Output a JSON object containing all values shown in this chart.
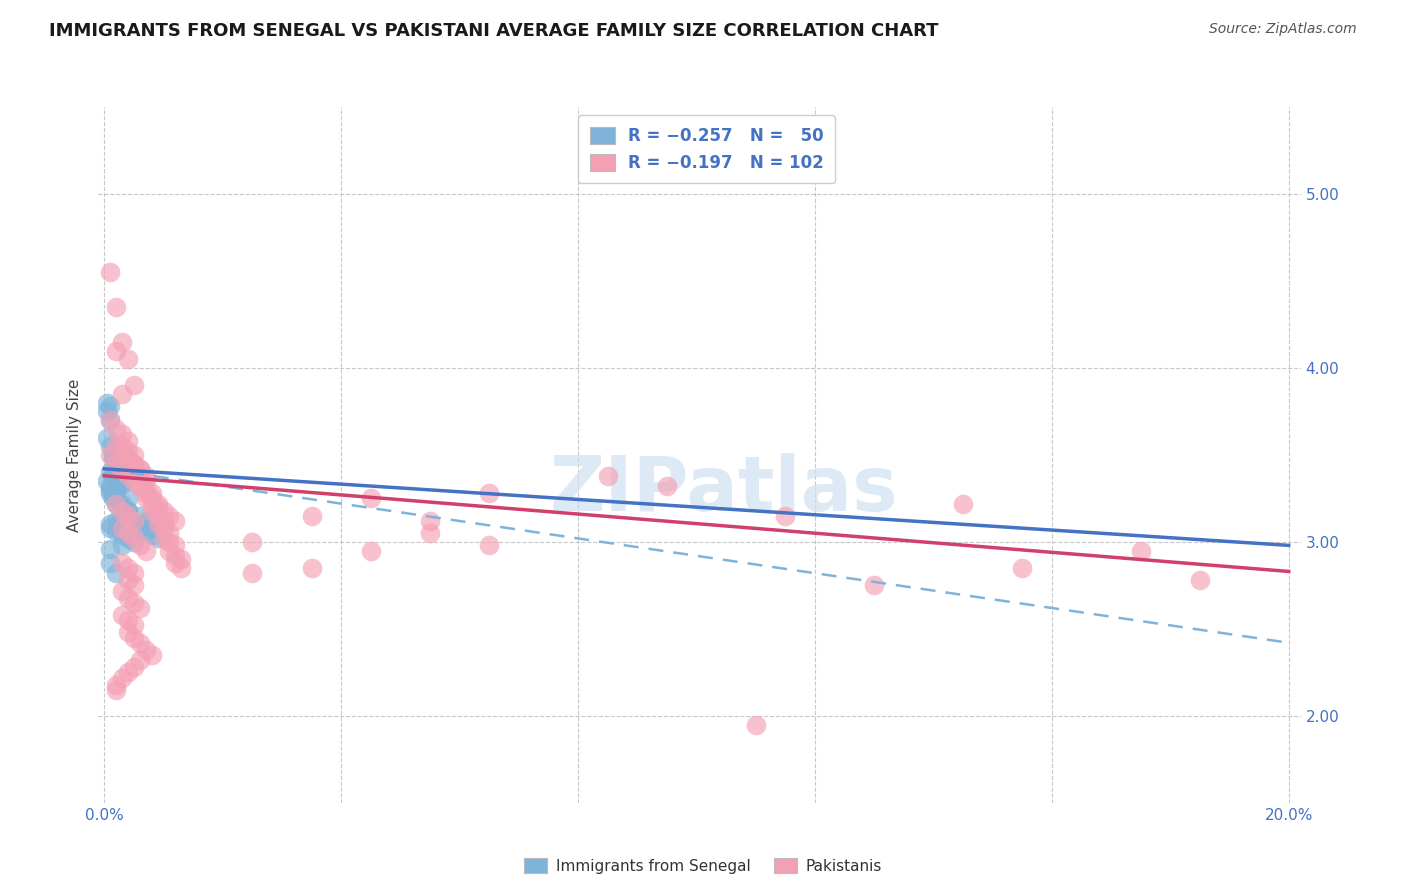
{
  "title": "IMMIGRANTS FROM SENEGAL VS PAKISTANI AVERAGE FAMILY SIZE CORRELATION CHART",
  "source": "Source: ZipAtlas.com",
  "ylabel": "Average Family Size",
  "watermark": "ZIPatlas",
  "ylim": [
    1.5,
    5.5
  ],
  "xlim": [
    -0.001,
    0.202
  ],
  "senegal_color": "#7fb3d9",
  "pakistani_color": "#f4a0b4",
  "senegal_line_color": "#4472c4",
  "pakistani_line_color": "#d0406a",
  "dashed_line_color": "#7fb3d9",
  "title_color": "#1a1a1a",
  "title_fontsize": 13,
  "axis_label_color": "#4472c4",
  "grid_color": "#c8c8c8",
  "background_color": "#ffffff",
  "senegal_line_x": [
    0.0,
    0.2
  ],
  "senegal_line_y": [
    3.42,
    2.98
  ],
  "pakistani_line_x": [
    0.0,
    0.2
  ],
  "pakistani_line_y": [
    3.38,
    2.83
  ],
  "dashed_line_x": [
    0.0,
    0.2
  ],
  "dashed_line_y": [
    3.42,
    2.42
  ],
  "senegal_points": [
    [
      0.0005,
      3.8
    ],
    [
      0.0005,
      3.75
    ],
    [
      0.001,
      3.78
    ],
    [
      0.001,
      3.7
    ],
    [
      0.0005,
      3.6
    ],
    [
      0.001,
      3.55
    ],
    [
      0.0015,
      3.5
    ],
    [
      0.0015,
      3.48
    ],
    [
      0.002,
      3.45
    ],
    [
      0.002,
      3.42
    ],
    [
      0.001,
      3.4
    ],
    [
      0.0015,
      3.38
    ],
    [
      0.002,
      3.36
    ],
    [
      0.003,
      3.35
    ],
    [
      0.003,
      3.33
    ],
    [
      0.002,
      3.32
    ],
    [
      0.001,
      3.3
    ],
    [
      0.001,
      3.28
    ],
    [
      0.002,
      3.26
    ],
    [
      0.0015,
      3.25
    ],
    [
      0.002,
      3.22
    ],
    [
      0.003,
      3.2
    ],
    [
      0.004,
      3.18
    ],
    [
      0.003,
      3.15
    ],
    [
      0.002,
      3.12
    ],
    [
      0.001,
      3.1
    ],
    [
      0.001,
      3.08
    ],
    [
      0.002,
      3.06
    ],
    [
      0.003,
      3.04
    ],
    [
      0.004,
      3.02
    ],
    [
      0.005,
      3.0
    ],
    [
      0.003,
      2.98
    ],
    [
      0.001,
      2.96
    ],
    [
      0.001,
      2.88
    ],
    [
      0.002,
      2.82
    ],
    [
      0.002,
      3.3
    ],
    [
      0.0005,
      3.35
    ],
    [
      0.001,
      3.32
    ],
    [
      0.0015,
      3.28
    ],
    [
      0.003,
      3.22
    ],
    [
      0.004,
      3.18
    ],
    [
      0.005,
      3.1
    ],
    [
      0.006,
      3.08
    ],
    [
      0.007,
      3.06
    ],
    [
      0.008,
      3.04
    ],
    [
      0.009,
      3.02
    ],
    [
      0.006,
      3.15
    ],
    [
      0.007,
      3.12
    ],
    [
      0.008,
      3.08
    ],
    [
      0.004,
      3.25
    ]
  ],
  "pakistani_points": [
    [
      0.001,
      4.55
    ],
    [
      0.002,
      4.35
    ],
    [
      0.002,
      4.1
    ],
    [
      0.003,
      4.15
    ],
    [
      0.004,
      4.05
    ],
    [
      0.005,
      3.9
    ],
    [
      0.003,
      3.85
    ],
    [
      0.001,
      3.7
    ],
    [
      0.002,
      3.65
    ],
    [
      0.003,
      3.62
    ],
    [
      0.004,
      3.58
    ],
    [
      0.003,
      3.55
    ],
    [
      0.004,
      3.52
    ],
    [
      0.005,
      3.5
    ],
    [
      0.004,
      3.48
    ],
    [
      0.005,
      3.45
    ],
    [
      0.006,
      3.42
    ],
    [
      0.005,
      3.4
    ],
    [
      0.006,
      3.38
    ],
    [
      0.007,
      3.35
    ],
    [
      0.006,
      3.32
    ],
    [
      0.007,
      3.3
    ],
    [
      0.008,
      3.28
    ],
    [
      0.007,
      3.25
    ],
    [
      0.008,
      3.22
    ],
    [
      0.009,
      3.2
    ],
    [
      0.008,
      3.18
    ],
    [
      0.009,
      3.15
    ],
    [
      0.01,
      3.12
    ],
    [
      0.009,
      3.1
    ],
    [
      0.01,
      3.08
    ],
    [
      0.011,
      3.05
    ],
    [
      0.01,
      3.02
    ],
    [
      0.011,
      3.0
    ],
    [
      0.012,
      2.98
    ],
    [
      0.011,
      2.95
    ],
    [
      0.012,
      2.92
    ],
    [
      0.013,
      2.9
    ],
    [
      0.012,
      2.88
    ],
    [
      0.013,
      2.85
    ],
    [
      0.001,
      3.5
    ],
    [
      0.002,
      3.45
    ],
    [
      0.003,
      3.42
    ],
    [
      0.004,
      3.38
    ],
    [
      0.005,
      3.35
    ],
    [
      0.006,
      3.32
    ],
    [
      0.007,
      3.28
    ],
    [
      0.008,
      3.25
    ],
    [
      0.009,
      3.22
    ],
    [
      0.01,
      3.18
    ],
    [
      0.011,
      3.15
    ],
    [
      0.012,
      3.12
    ],
    [
      0.002,
      3.55
    ],
    [
      0.003,
      3.52
    ],
    [
      0.004,
      3.48
    ],
    [
      0.005,
      3.45
    ],
    [
      0.006,
      3.42
    ],
    [
      0.007,
      3.38
    ],
    [
      0.002,
      3.22
    ],
    [
      0.003,
      3.18
    ],
    [
      0.004,
      3.15
    ],
    [
      0.005,
      3.12
    ],
    [
      0.003,
      3.08
    ],
    [
      0.004,
      3.05
    ],
    [
      0.005,
      3.02
    ],
    [
      0.006,
      2.98
    ],
    [
      0.007,
      2.95
    ],
    [
      0.003,
      2.88
    ],
    [
      0.004,
      2.85
    ],
    [
      0.005,
      2.82
    ],
    [
      0.004,
      2.78
    ],
    [
      0.005,
      2.75
    ],
    [
      0.003,
      2.72
    ],
    [
      0.004,
      2.68
    ],
    [
      0.005,
      2.65
    ],
    [
      0.006,
      2.62
    ],
    [
      0.003,
      2.58
    ],
    [
      0.004,
      2.55
    ],
    [
      0.005,
      2.52
    ],
    [
      0.004,
      2.48
    ],
    [
      0.005,
      2.45
    ],
    [
      0.006,
      2.42
    ],
    [
      0.007,
      2.38
    ],
    [
      0.008,
      2.35
    ],
    [
      0.006,
      2.32
    ],
    [
      0.005,
      2.28
    ],
    [
      0.004,
      2.25
    ],
    [
      0.003,
      2.22
    ],
    [
      0.002,
      2.18
    ],
    [
      0.002,
      2.15
    ],
    [
      0.115,
      3.15
    ],
    [
      0.13,
      2.75
    ],
    [
      0.145,
      3.22
    ],
    [
      0.155,
      2.85
    ],
    [
      0.175,
      2.95
    ],
    [
      0.185,
      2.78
    ],
    [
      0.095,
      3.32
    ],
    [
      0.085,
      3.38
    ],
    [
      0.065,
      3.28
    ],
    [
      0.055,
      3.05
    ],
    [
      0.045,
      2.95
    ],
    [
      0.035,
      2.85
    ],
    [
      0.025,
      2.82
    ],
    [
      0.025,
      3.0
    ],
    [
      0.035,
      3.15
    ],
    [
      0.045,
      3.25
    ],
    [
      0.055,
      3.12
    ],
    [
      0.065,
      2.98
    ],
    [
      0.11,
      1.95
    ]
  ]
}
